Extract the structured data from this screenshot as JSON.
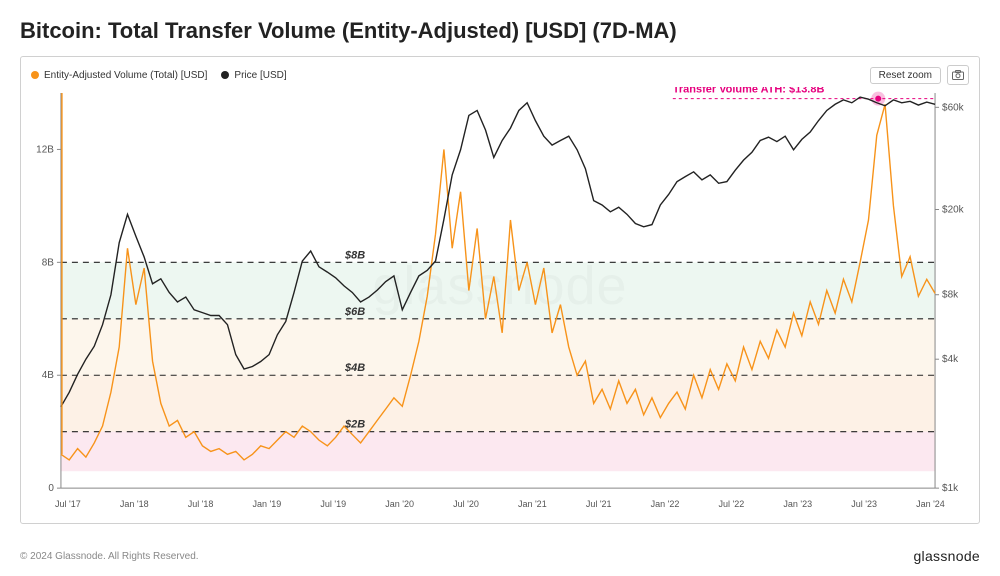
{
  "title": "Bitcoin: Total Transfer Volume (Entity-Adjusted) [USD] (7D-MA)",
  "legend": {
    "volume": {
      "label": "Entity-Adjusted Volume (Total) [USD]",
      "color": "#f7931a"
    },
    "price": {
      "label": "Price [USD]",
      "color": "#222222"
    }
  },
  "controls": {
    "reset_zoom": "Reset zoom"
  },
  "watermark": "glassnode",
  "footer": {
    "copyright": "© 2024 Glassnode. All Rights Reserved.",
    "brand": "glassnode"
  },
  "ath": {
    "label": "Transfer Volume ATH: $13.8B",
    "value_b": 13.8,
    "color": "#e6007e"
  },
  "chart": {
    "type": "dual-axis-line",
    "background_color": "#ffffff",
    "grid_color": "#d9d9d9",
    "left_axis": {
      "label_implicit": "Volume (B)",
      "min": 0,
      "max": 14,
      "ticks": [
        0,
        4,
        8,
        12
      ],
      "tick_labels": [
        "0",
        "4B",
        "8B",
        "12B"
      ],
      "color": "#555"
    },
    "right_axis": {
      "label_implicit": "Price USD (log)",
      "scale": "log",
      "min": 1000,
      "max": 70000,
      "ticks": [
        1000,
        4000,
        8000,
        20000,
        60000
      ],
      "tick_labels": [
        "$1k",
        "$4k",
        "$8k",
        "$20k",
        "$60k"
      ],
      "color": "#555"
    },
    "x_axis": {
      "labels": [
        "Jul '17",
        "Jan '18",
        "Jul '18",
        "Jan '19",
        "Jul '19",
        "Jan '20",
        "Jul '20",
        "Jan '21",
        "Jul '21",
        "Jan '22",
        "Jul '22",
        "Jan '23",
        "Jul '23",
        "Jan '24"
      ]
    },
    "bands": [
      {
        "from_b": 0.6,
        "to_b": 2.0,
        "color": "#f9d6e3",
        "opacity": 0.55,
        "label": "$2B"
      },
      {
        "from_b": 2.0,
        "to_b": 4.0,
        "color": "#fbe6d2",
        "opacity": 0.55,
        "label": "$4B"
      },
      {
        "from_b": 4.0,
        "to_b": 6.0,
        "color": "#fbeedd",
        "opacity": 0.55,
        "label": "$6B"
      },
      {
        "from_b": 6.0,
        "to_b": 8.0,
        "color": "#dff0e6",
        "opacity": 0.55,
        "label": "$8B"
      }
    ],
    "band_dash_lines_b": [
      2,
      4,
      6,
      8
    ],
    "volume_series_b": [
      1.2,
      1.0,
      1.4,
      1.1,
      1.6,
      2.2,
      3.4,
      5.0,
      8.5,
      6.5,
      7.8,
      4.5,
      3.0,
      2.2,
      2.4,
      1.8,
      2.0,
      1.5,
      1.3,
      1.4,
      1.2,
      1.3,
      1.0,
      1.2,
      1.5,
      1.4,
      1.7,
      2.0,
      1.8,
      2.2,
      2.0,
      1.7,
      1.5,
      1.8,
      2.2,
      1.9,
      1.6,
      2.0,
      2.4,
      2.8,
      3.2,
      2.9,
      4.0,
      5.2,
      6.8,
      9.0,
      12.0,
      8.5,
      10.5,
      7.0,
      9.2,
      6.0,
      7.5,
      5.5,
      9.5,
      7.0,
      8.0,
      6.5,
      7.8,
      5.5,
      6.5,
      5.0,
      4.0,
      4.5,
      3.0,
      3.5,
      2.8,
      3.8,
      3.0,
      3.5,
      2.6,
      3.2,
      2.5,
      3.0,
      3.4,
      2.8,
      4.0,
      3.2,
      4.2,
      3.5,
      4.4,
      3.8,
      5.0,
      4.2,
      5.2,
      4.6,
      5.6,
      5.0,
      6.2,
      5.4,
      6.6,
      5.8,
      7.0,
      6.2,
      7.4,
      6.6,
      8.0,
      9.5,
      12.5,
      13.6,
      10.0,
      7.5,
      8.2,
      6.8,
      7.4,
      6.9
    ],
    "price_series_usd": [
      2400,
      2800,
      3400,
      4000,
      4600,
      5800,
      8000,
      14000,
      19000,
      15000,
      12000,
      9000,
      9500,
      8200,
      7400,
      7800,
      6800,
      6600,
      6400,
      6400,
      5800,
      4200,
      3600,
      3700,
      3900,
      4200,
      5200,
      6000,
      8200,
      11500,
      12800,
      10800,
      10200,
      9600,
      8800,
      8200,
      7400,
      7800,
      8400,
      9200,
      9800,
      6800,
      8200,
      9800,
      10400,
      11500,
      18000,
      29000,
      38000,
      55000,
      58000,
      47000,
      35000,
      42000,
      48000,
      58000,
      63000,
      52000,
      44000,
      40000,
      42000,
      44000,
      38000,
      31000,
      22000,
      21000,
      19500,
      20500,
      19000,
      17200,
      16600,
      17000,
      21000,
      23500,
      27000,
      28500,
      30000,
      27500,
      29000,
      26500,
      27000,
      30500,
      34000,
      37000,
      42000,
      43500,
      41500,
      44000,
      38000,
      42500,
      46000,
      52000,
      58000,
      62000,
      65000,
      63000,
      67000,
      65500,
      63000,
      61000,
      65000,
      63000,
      64000,
      61500,
      63500,
      62000
    ],
    "line_width": 1.4,
    "volume_color": "#f7931a",
    "price_color": "#222222"
  }
}
